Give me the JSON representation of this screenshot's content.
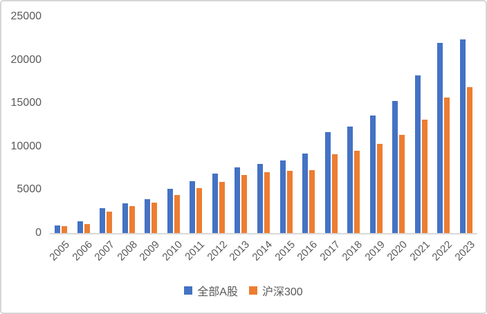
{
  "chart_data": {
    "type": "bar",
    "title": "",
    "xlabel": "",
    "ylabel": "",
    "categories": [
      "2005",
      "2006",
      "2007",
      "2008",
      "2009",
      "2010",
      "2011",
      "2012",
      "2013",
      "2014",
      "2015",
      "2016",
      "2017",
      "2018",
      "2019",
      "2020",
      "2021",
      "2022",
      "2023"
    ],
    "series": [
      {
        "name": "全部A股",
        "color": "#4472C4",
        "values": [
          880,
          1340,
          2910,
          3450,
          3930,
          5100,
          5970,
          6900,
          7600,
          8000,
          8400,
          9170,
          11650,
          12340,
          13590,
          15240,
          18190,
          21950,
          22370
        ]
      },
      {
        "name": "沪深300",
        "color": "#ED7D31",
        "values": [
          780,
          1020,
          2450,
          3100,
          3550,
          4380,
          5230,
          5920,
          6720,
          7000,
          7150,
          7230,
          9090,
          9510,
          10290,
          11350,
          13110,
          15640,
          16860
        ]
      }
    ],
    "ylim": [
      0,
      25000
    ],
    "yticks": [
      0,
      5000,
      10000,
      15000,
      20000,
      25000
    ],
    "grid": false,
    "legend_position": "bottom"
  },
  "colors": {
    "series_blue": "#4472C4",
    "series_orange": "#ED7D31",
    "axis_line": "#d9d9d9",
    "tick_text": "#595959",
    "frame_border": "#d6d6d6",
    "background": "#ffffff"
  }
}
